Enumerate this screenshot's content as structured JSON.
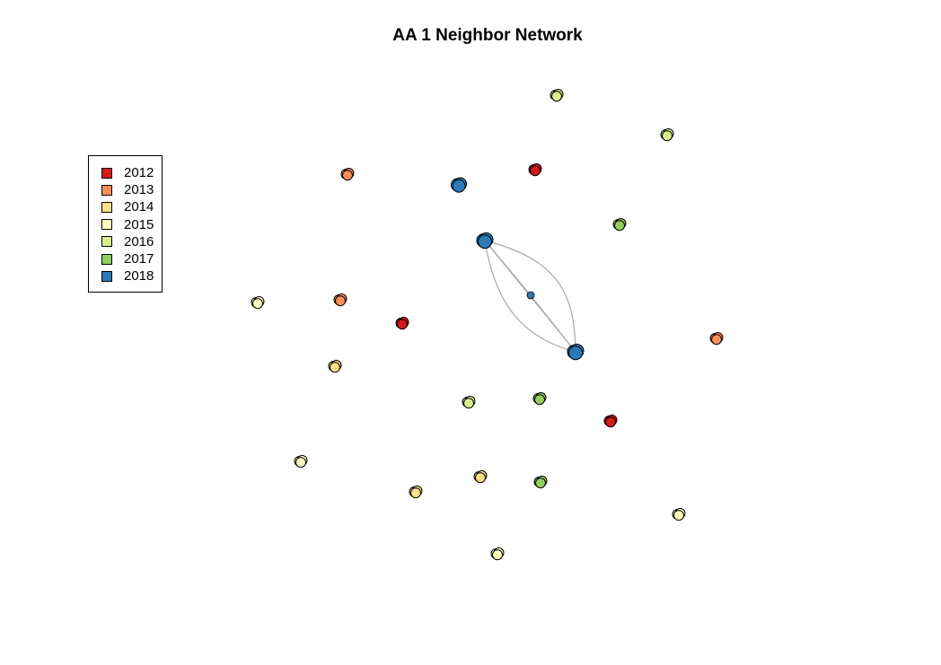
{
  "title": "AA 1 Neighbor Network",
  "legend": [
    {
      "label": "2012",
      "color": "#d7191c"
    },
    {
      "label": "2013",
      "color": "#fc8d59"
    },
    {
      "label": "2014",
      "color": "#fee08b"
    },
    {
      "label": "2015",
      "color": "#ffffbf"
    },
    {
      "label": "2016",
      "color": "#d9ef8b"
    },
    {
      "label": "2017",
      "color": "#91cf60"
    },
    {
      "label": "2018",
      "color": "#2c7bb6"
    }
  ],
  "palette": {
    "edge": "#aaaaaa",
    "node_stroke": "#000000"
  },
  "nodes": [
    {
      "year": "2016"
    },
    {
      "year": "2016"
    },
    {
      "year": "2012"
    },
    {
      "year": "2013"
    },
    {
      "year": "2018"
    },
    {
      "year": "2017"
    },
    {
      "year": "2018"
    },
    {
      "year": "2018"
    },
    {
      "year": "2015"
    },
    {
      "year": "2013"
    },
    {
      "year": "2012"
    },
    {
      "year": "2018"
    },
    {
      "year": "2013"
    },
    {
      "year": "2014"
    },
    {
      "year": "2016"
    },
    {
      "year": "2017"
    },
    {
      "year": "2012"
    },
    {
      "year": "2015"
    },
    {
      "year": "2014"
    },
    {
      "year": "2014"
    },
    {
      "year": "2017"
    },
    {
      "year": "2015"
    },
    {
      "year": "2015"
    }
  ],
  "edges": [
    {
      "from": 4,
      "to": 11
    },
    {
      "from": 4,
      "to": 7
    },
    {
      "from": 7,
      "to": 11
    }
  ]
}
